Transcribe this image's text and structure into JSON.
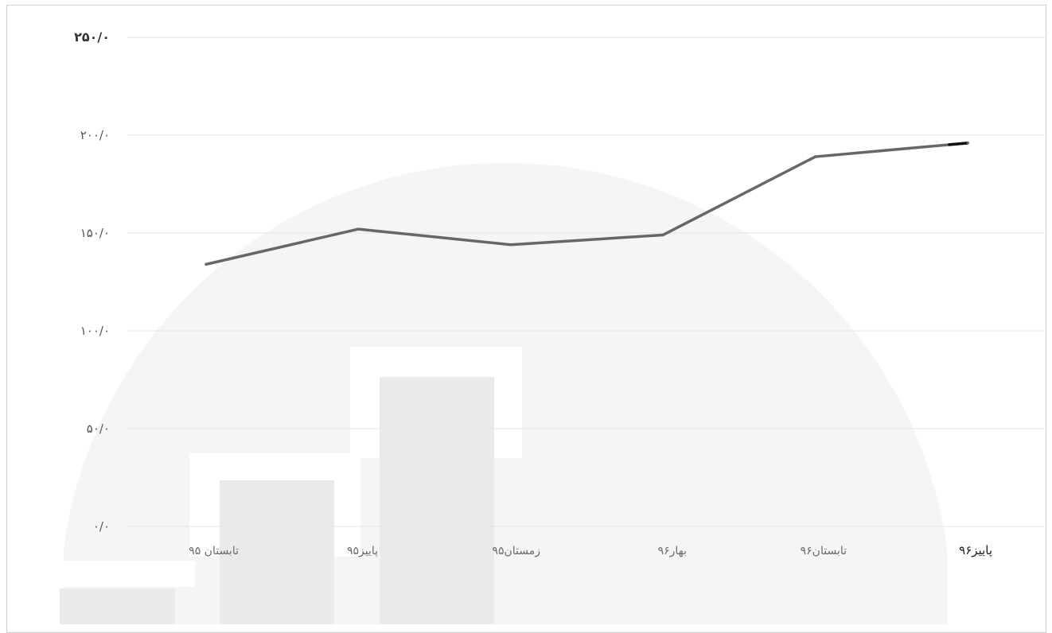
{
  "chart_data": {
    "type": "line",
    "categories": [
      "تابستان ۹۵",
      "پاییز۹۵",
      "زمستان۹۵",
      "بهار۹۶",
      "تابستان۹۶",
      "پاییز۹۶"
    ],
    "series": [
      {
        "values": [
          134,
          152,
          144,
          149,
          189,
          196
        ]
      }
    ],
    "yticks": [
      0,
      50,
      100,
      150,
      200,
      250
    ],
    "ytick_labels": [
      "۰/۰",
      "۵۰/۰",
      "۱۰۰/۰",
      "۱۵۰/۰",
      "۲۰۰/۰",
      "۲۵۰/۰"
    ],
    "ylim": [
      0,
      250
    ],
    "grid": true,
    "title": "",
    "xlabel": "",
    "ylabel": "",
    "colors": {
      "line": "#676767",
      "line_highlight": "#111111",
      "grid": "#e4e4e4",
      "watermark": "#f4f4f4"
    }
  }
}
